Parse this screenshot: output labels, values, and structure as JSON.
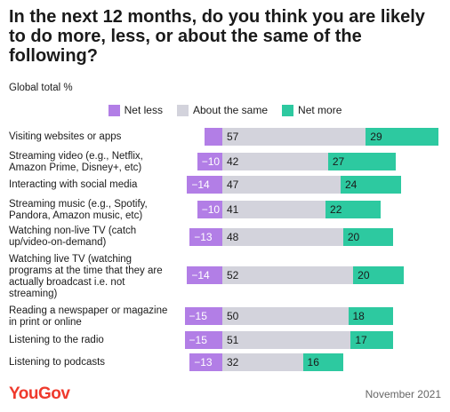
{
  "title": "In the next 12 months, do you think you are likely to do more, less, or about the same of the following?",
  "subtitle": "Global total %",
  "legend": [
    {
      "label": "Net less",
      "color": "#b27ee6"
    },
    {
      "label": "About the same",
      "color": "#d3d3dc"
    },
    {
      "label": "Net more",
      "color": "#2dc9a0"
    }
  ],
  "chart_data": {
    "type": "bar",
    "stacked": true,
    "categories": [
      "Visiting websites or apps",
      "Streaming video (e.g., Netflix,\nAmazon Prime, Disney+, etc)",
      "Interacting with social media",
      "Streaming music (e.g., Spotify,\nPandora, Amazon music, etc)",
      "Watching non-live TV (catch\nup/video-on-demand)",
      "Watching live TV (watching\nprograms at the time that they are\nactually broadcast i.e. not\nstreaming)",
      "Reading a newspaper or magazine\nin print or online",
      "Listening to the radio",
      "Listening to podcasts"
    ],
    "series": [
      {
        "name": "Net less",
        "values": [
          -7,
          -10,
          -14,
          -10,
          -13,
          -14,
          -15,
          -15,
          -13
        ],
        "labels": [
          "",
          "−10",
          "−14",
          "−10",
          "−13",
          "−14",
          "−15",
          "−15",
          "−13"
        ]
      },
      {
        "name": "About the same",
        "values": [
          57,
          42,
          47,
          41,
          48,
          52,
          50,
          51,
          32
        ],
        "labels": [
          "57",
          "42",
          "47",
          "41",
          "48",
          "52",
          "50",
          "51",
          "32"
        ]
      },
      {
        "name": "Net more",
        "values": [
          29,
          27,
          24,
          22,
          20,
          20,
          18,
          17,
          16
        ],
        "labels": [
          "29",
          "27",
          "24",
          "22",
          "20",
          "20",
          "18",
          "17",
          "16"
        ]
      }
    ],
    "colors": [
      "#b27ee6",
      "#d3d3dc",
      "#2dc9a0"
    ]
  },
  "footer": {
    "brand": "YouGov",
    "date": "November 2021"
  }
}
